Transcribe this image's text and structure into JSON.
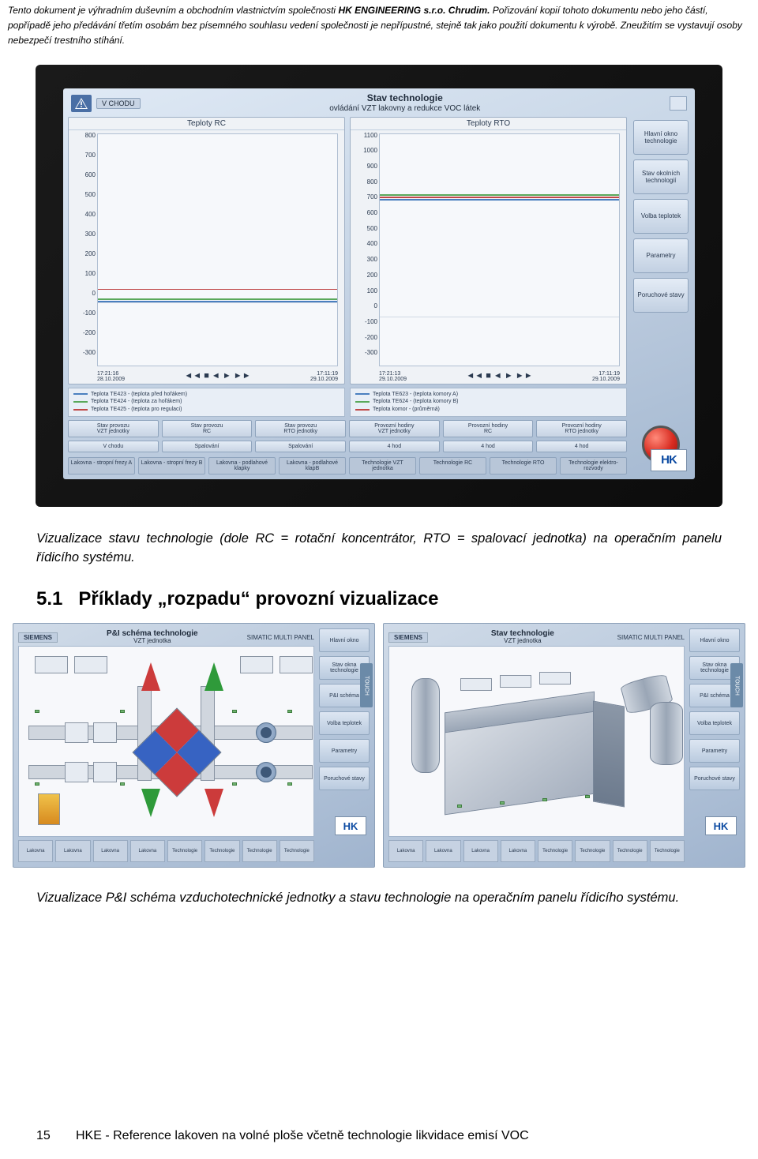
{
  "disclaimer": {
    "pre": "Tento dokument je výhradním duševním a obchodním vlastnictvím společnosti ",
    "bold": "HK ENGINEERING s.r.o. Chrudim.",
    "post": " Pořizování kopií tohoto dokumentu nebo jeho částí, popřípadě jeho předávání třetím osobám bez písemného souhlasu vedení společnosti je nepřípustné, stejně tak jako použití dokumentu k výrobě. Zneužitím se vystavují osoby nebezpečí trestního stíhání."
  },
  "hmi_photo": {
    "chip_left": "V CHODU",
    "title_l1": "Stav technologie",
    "title_l2": "ovládání VZT lakovny a redukce VOC látek",
    "chart_left": {
      "title": "Teploty RC",
      "yticks": [
        "800",
        "700",
        "600",
        "500",
        "400",
        "300",
        "200",
        "100",
        "0",
        "-100",
        "-200",
        "-300"
      ],
      "x_left_t": "17:21:16",
      "x_left_d": "28.10.2009",
      "x_right_t": "17:11:19",
      "x_right_d": "29.10.2009",
      "legend": [
        {
          "color": "#4a7fbf",
          "text": "Teplota TE423 - (teplota před hořákem)"
        },
        {
          "color": "#5aa85a",
          "text": "Teplota TE424 - (teplota za hořákem)"
        },
        {
          "color": "#c04848",
          "text": "Teplota TE425 - (teplota pro regulaci)"
        }
      ]
    },
    "chart_right": {
      "title": "Teploty RTO",
      "yticks": [
        "1100",
        "1000",
        "900",
        "800",
        "700",
        "600",
        "500",
        "400",
        "300",
        "200",
        "100",
        "0",
        "-100",
        "-200",
        "-300"
      ],
      "x_left_t": "17:21:13",
      "x_left_d": "29.10.2009",
      "x_right_t": "17:11:19",
      "x_right_d": "29.10.2009",
      "legend": [
        {
          "color": "#4a7fbf",
          "text": "Teplota TE623 - (teplota komory A)"
        },
        {
          "color": "#5aa85a",
          "text": "Teplota TE624 - (teplota komory B)"
        },
        {
          "color": "#c04848",
          "text": "Teplota komor - (průměrná)"
        }
      ]
    },
    "side_buttons": [
      "Hlavní okno technologie",
      "Stav okolních technologií",
      "Volba teplotek",
      "Parametry",
      "Poruchové stavy"
    ],
    "btn_row1": [
      {
        "top": "Stav provozu",
        "bot": "VZT jednotky"
      },
      {
        "top": "Stav provozu",
        "bot": "RC"
      },
      {
        "top": "Stav provozu",
        "bot": "RTO jednotky"
      },
      {
        "top": "Provozní hodiny",
        "bot": "VZT jednotky"
      },
      {
        "top": "Provozní hodiny",
        "bot": "RC"
      },
      {
        "top": "Provozní hodiny",
        "bot": "RTO jednotky"
      }
    ],
    "btn_row2": [
      "V chodu",
      "Spalování",
      "Spalování",
      "4    hod",
      "4    hod",
      "4    hod"
    ],
    "tab_row": [
      "Lakovna - stropní frezy A",
      "Lakovna - stropní frezy B",
      "Lakovna - podlahové klapky",
      "Lakovna - podlahové klapB",
      "Technologie VZT jednotka",
      "Technologie RC",
      "Technologie RTO",
      "Technologie elektro-rozvody"
    ],
    "hk": "HK"
  },
  "caption_top": "Vizualizace stavu technologie (dole RC = rotační koncentrátor, RTO = spalovací jednotka) na operačním panelu řídicího systému.",
  "section_num": "5.1",
  "section_title": "Příklady „rozpadu“ provozní vizualizace",
  "small_left": {
    "brand": "SIEMENS",
    "rmark": "SIMATIC MULTI PANEL",
    "title": "P&I schéma technologie",
    "sub": "VZT jednotka",
    "side": [
      "Hlavní okno",
      "Stav okna technologie",
      "P&I schéma",
      "Volba teplotek",
      "Parametry",
      "Poruchové stavy"
    ],
    "touch": "TOUCH",
    "tabs": [
      "Lakovna",
      "Lakovna",
      "Lakovna",
      "Lakovna",
      "Technologie",
      "Technologie",
      "Technologie",
      "Technologie"
    ],
    "hk": "HK"
  },
  "small_right": {
    "brand": "SIEMENS",
    "rmark": "SIMATIC MULTI PANEL",
    "title": "Stav technologie",
    "sub": "VZT jednotka",
    "side": [
      "Hlavní okno",
      "Stav okna technologie",
      "P&I schéma",
      "Volba teplotek",
      "Parametry",
      "Poruchové stavy"
    ],
    "touch": "TOUCH",
    "tabs": [
      "Lakovna",
      "Lakovna",
      "Lakovna",
      "Lakovna",
      "Technologie",
      "Technologie",
      "Technologie",
      "Technologie"
    ],
    "hk": "HK"
  },
  "caption_bottom": "Vizualizace P&I schéma vzduchotechnické jednotky a stavu technologie na operačním panelu řídicího systému.",
  "footer": {
    "page": "15",
    "text": "HKE - Reference lakoven na volné ploše včetně technologie likvidace emisí VOC"
  }
}
